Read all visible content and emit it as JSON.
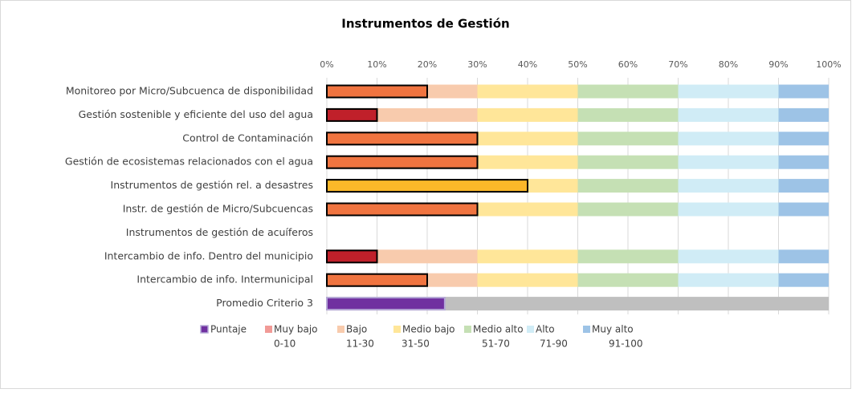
{
  "chart_data": {
    "type": "bar",
    "title": "Instrumentos de Gestión",
    "categories": [
      "Monitoreo por Micro/Subcuenca de disponibilidad",
      "Gestión sostenible y eficiente del uso del agua",
      "Control de Contaminación",
      "Gestión de ecosistemas relacionados con el agua",
      "Instrumentos de gestión rel. a desastres",
      "Instr. de gestión de Micro/Subcuencas",
      "Instrumentos de gestión de acuíferos",
      "Intercambio de info. Dentro del municipio",
      "Intercambio de info. Intermunicipal",
      "Promedio Criterio 3"
    ],
    "score": {
      "name": "Puntaje",
      "color": "#7030a0",
      "values": [
        20,
        10,
        30,
        30,
        40,
        30,
        null,
        10,
        20,
        23.5
      ],
      "colors": [
        "#f07440",
        "#c0202a",
        "#f07440",
        "#f07440",
        "#fbb829",
        "#f07440",
        null,
        "#c0202a",
        "#f07440",
        "#7030a0"
      ]
    },
    "series": [
      {
        "name": "Muy bajo",
        "range": "0-10",
        "color": "#f19a96",
        "values": [
          10,
          10,
          10,
          10,
          10,
          10,
          null,
          10,
          10,
          null
        ]
      },
      {
        "name": "Bajo",
        "range": "11-30",
        "color": "#f8cbad",
        "values": [
          20,
          20,
          20,
          20,
          20,
          20,
          null,
          20,
          20,
          null
        ]
      },
      {
        "name": "Medio bajo",
        "range": "31-50",
        "color": "#ffe699",
        "values": [
          20,
          20,
          20,
          20,
          20,
          20,
          null,
          20,
          20,
          null
        ]
      },
      {
        "name": "Medio alto",
        "range": "51-70",
        "color": "#c5e0b4",
        "values": [
          20,
          20,
          20,
          20,
          20,
          20,
          null,
          20,
          20,
          null
        ]
      },
      {
        "name": "Alto",
        "range": "71-90",
        "color": "#d0ecf6",
        "values": [
          20,
          20,
          20,
          20,
          20,
          20,
          null,
          20,
          20,
          null
        ]
      },
      {
        "name": "Muy alto",
        "range": "91-100",
        "color": "#9dc3e6",
        "values": [
          10,
          10,
          10,
          10,
          10,
          10,
          null,
          10,
          10,
          null
        ]
      }
    ],
    "average_background": {
      "color": "#bfbfbf",
      "value": 100
    },
    "xlim": [
      0,
      100
    ],
    "xticks": [
      {
        "value": 0,
        "label": "0%"
      },
      {
        "value": 10,
        "label": "10%"
      },
      {
        "value": 20,
        "label": "20%"
      },
      {
        "value": 30,
        "label": "30%"
      },
      {
        "value": 40,
        "label": "40%"
      },
      {
        "value": 50,
        "label": "50%"
      },
      {
        "value": 60,
        "label": "60%"
      },
      {
        "value": 70,
        "label": "70%"
      },
      {
        "value": 80,
        "label": "80%"
      },
      {
        "value": 90,
        "label": "90%"
      },
      {
        "value": 100,
        "label": "100%"
      }
    ],
    "grid": true
  }
}
